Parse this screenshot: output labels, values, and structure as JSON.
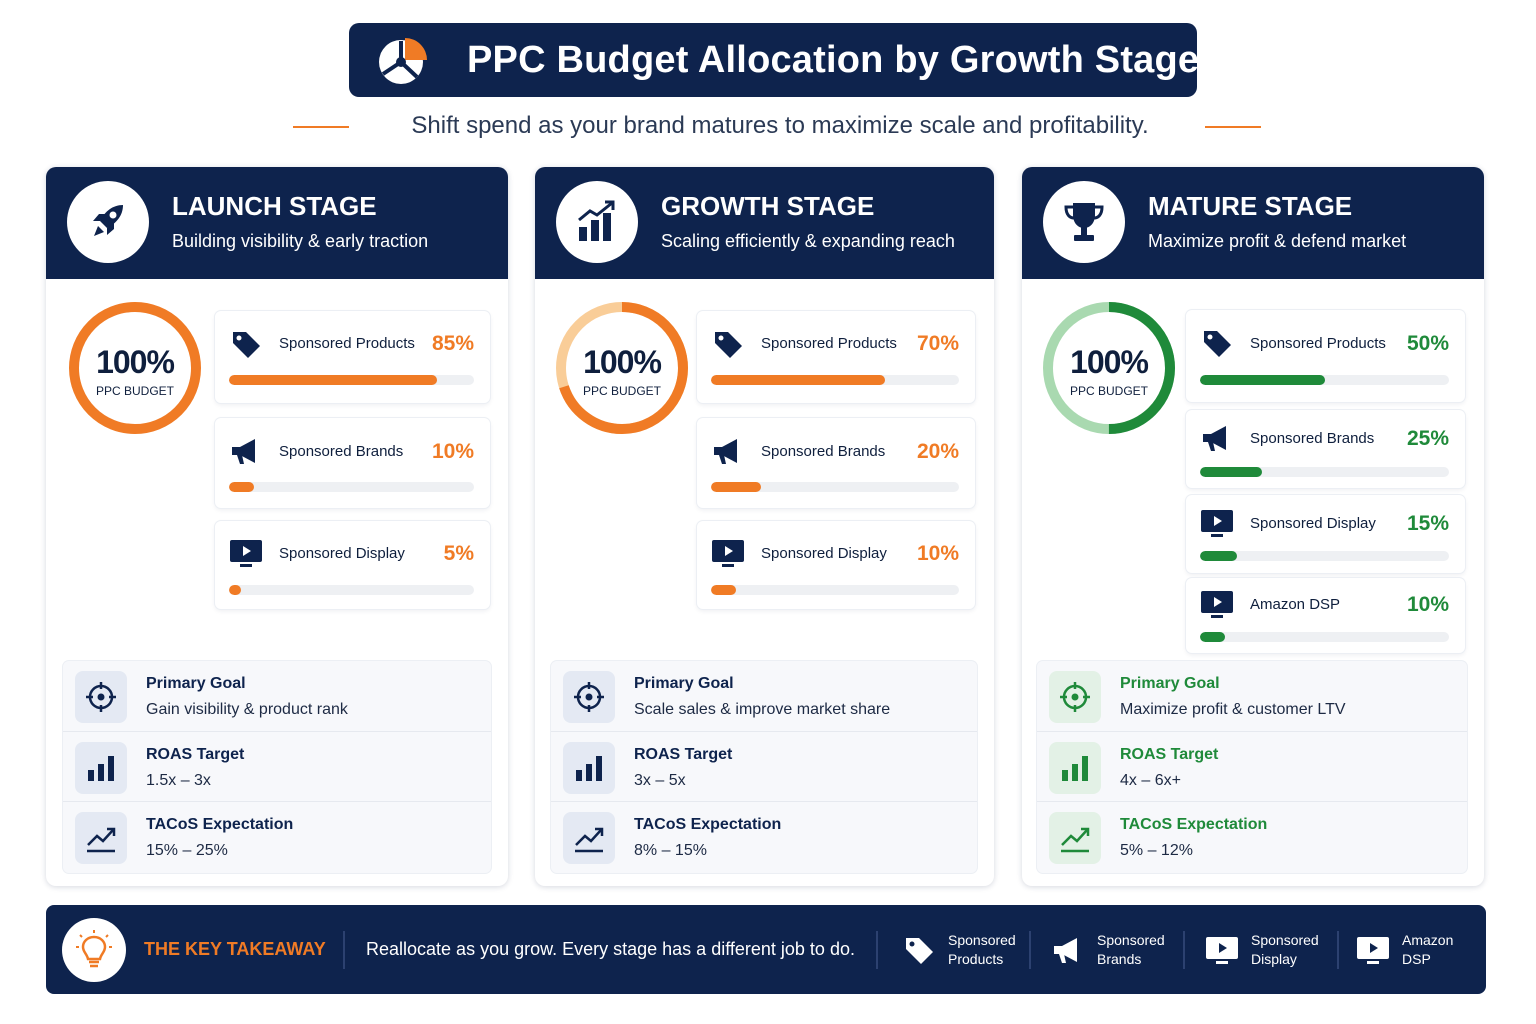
{
  "header": {
    "title": "PPC Budget Allocation by Growth Stage",
    "subtitle": "Shift spend as your brand matures to maximize scale and profitability."
  },
  "colors": {
    "navy": "#0e234d",
    "orange": "#f07b25",
    "orange_light": "#f9cd98",
    "green": "#1f8a3a",
    "green_light": "#a9d9b0"
  },
  "stages": [
    {
      "name": "LAUNCH STAGE",
      "description": "Building visibility & early traction",
      "icon": "rocket-icon",
      "accent": "orange",
      "budget_pct": "100%",
      "budget_label": "PPC BUDGET",
      "channels": [
        {
          "name": "Sponsored Products",
          "pct_label": "85%",
          "value": 85,
          "icon": "tag-icon"
        },
        {
          "name": "Sponsored Brands",
          "pct_label": "10%",
          "value": 10,
          "icon": "megaphone-icon"
        },
        {
          "name": "Sponsored Display",
          "pct_label": "5%",
          "value": 5,
          "icon": "monitor-play-icon"
        }
      ],
      "goals": [
        {
          "title": "Primary Goal",
          "value": "Gain visibility & product rank",
          "icon": "target-icon"
        },
        {
          "title": "ROAS Target",
          "value": "1.5x – 3x",
          "icon": "bar-chart-icon"
        },
        {
          "title": "TACoS Expectation",
          "value": "15% – 25%",
          "icon": "trend-line-icon"
        }
      ]
    },
    {
      "name": "GROWTH STAGE",
      "description": "Scaling efficiently & expanding reach",
      "icon": "growth-chart-icon",
      "accent": "orange",
      "budget_pct": "100%",
      "budget_label": "PPC BUDGET",
      "channels": [
        {
          "name": "Sponsored Products",
          "pct_label": "70%",
          "value": 70,
          "icon": "tag-icon"
        },
        {
          "name": "Sponsored Brands",
          "pct_label": "20%",
          "value": 20,
          "icon": "megaphone-icon"
        },
        {
          "name": "Sponsored Display",
          "pct_label": "10%",
          "value": 10,
          "icon": "monitor-play-icon"
        }
      ],
      "goals": [
        {
          "title": "Primary Goal",
          "value": "Scale sales & improve market share",
          "icon": "target-icon"
        },
        {
          "title": "ROAS Target",
          "value": "3x – 5x",
          "icon": "bar-chart-icon"
        },
        {
          "title": "TACoS Expectation",
          "value": "8% – 15%",
          "icon": "trend-line-icon"
        }
      ]
    },
    {
      "name": "MATURE STAGE",
      "description": "Maximize profit & defend market",
      "icon": "trophy-icon",
      "accent": "green",
      "budget_pct": "100%",
      "budget_label": "PPC BUDGET",
      "channels": [
        {
          "name": "Sponsored Products",
          "pct_label": "50%",
          "value": 50,
          "icon": "tag-icon"
        },
        {
          "name": "Sponsored Brands",
          "pct_label": "25%",
          "value": 25,
          "icon": "megaphone-icon"
        },
        {
          "name": "Sponsored Display",
          "pct_label": "15%",
          "value": 15,
          "icon": "monitor-play-icon"
        },
        {
          "name": "Amazon DSP",
          "pct_label": "10%",
          "value": 10,
          "icon": "monitor-play-icon"
        }
      ],
      "goals": [
        {
          "title": "Primary Goal",
          "value": "Maximize profit & customer LTV",
          "icon": "target-icon"
        },
        {
          "title": "ROAS Target",
          "value": "4x – 6x+",
          "icon": "bar-chart-icon"
        },
        {
          "title": "TACoS Expectation",
          "value": "5% – 12%",
          "icon": "trend-line-icon"
        }
      ]
    }
  ],
  "footer": {
    "title": "THE KEY TAKEAWAY",
    "text": "Reallocate as you grow. Every stage has a different job to do.",
    "legend": [
      {
        "line1": "Sponsored",
        "line2": "Products",
        "icon": "tag-icon"
      },
      {
        "line1": "Sponsored",
        "line2": "Brands",
        "icon": "megaphone-icon"
      },
      {
        "line1": "Sponsored",
        "line2": "Display",
        "icon": "monitor-play-icon"
      },
      {
        "line1": "Amazon",
        "line2": "DSP",
        "icon": "monitor-play-icon"
      }
    ]
  }
}
